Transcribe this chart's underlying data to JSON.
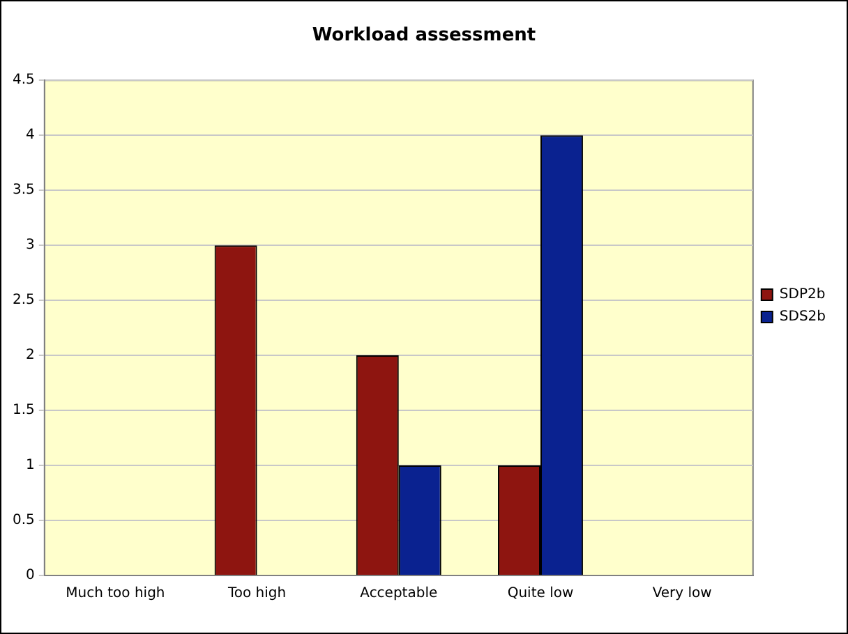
{
  "chart_data": {
    "type": "bar",
    "title": "Workload assessment",
    "categories": [
      "Much too high",
      "Too high",
      "Acceptable",
      "Quite low",
      "Very low"
    ],
    "series": [
      {
        "name": "SDP2b",
        "color": "#8e1510",
        "values": [
          0,
          3,
          2,
          1,
          0
        ]
      },
      {
        "name": "SDS2b",
        "color": "#0a2290",
        "values": [
          0,
          0,
          1,
          4,
          0
        ]
      }
    ],
    "ylim": [
      0,
      4.5
    ],
    "yticks": [
      0,
      0.5,
      1,
      1.5,
      2,
      2.5,
      3,
      3.5,
      4,
      4.5
    ],
    "grid": "y",
    "legend": "right"
  }
}
